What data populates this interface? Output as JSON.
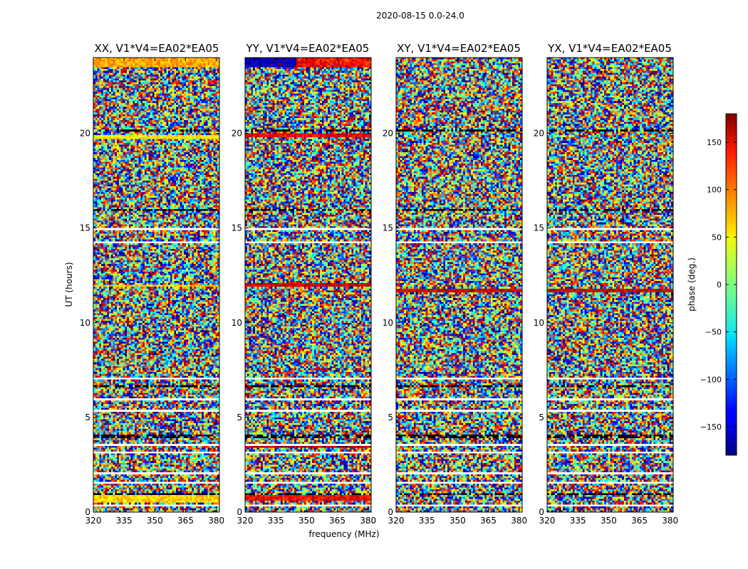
{
  "chart_data": {
    "type": "heatmap",
    "suptitle": "2020-08-15 0.0-24.0",
    "xlabel": "frequency (MHz)",
    "ylabel": "UT (hours)",
    "xlim": [
      320,
      381.5
    ],
    "ylim": [
      0,
      24
    ],
    "xticks": [
      320,
      335,
      350,
      365,
      380
    ],
    "yticks": [
      0,
      5,
      10,
      15,
      20
    ],
    "colorbar": {
      "label": "phase (deg.)",
      "range": [
        -180,
        180
      ],
      "ticks": [
        150,
        100,
        50,
        0,
        -50,
        -100,
        -150
      ],
      "tick_labels": [
        "150",
        "100",
        "50",
        "0",
        "−50",
        "−100",
        "−150"
      ],
      "colormap": "jet"
    },
    "grid_resolution": {
      "frequency_channels": 64,
      "time_samples": 240
    },
    "flagged_bands_white_hours": [
      [
        0.3,
        0.45
      ],
      [
        1.55,
        1.6
      ],
      [
        2.05,
        2.1
      ],
      [
        3.1,
        3.15
      ],
      [
        3.55,
        3.6
      ],
      [
        3.7,
        3.75
      ],
      [
        5.0,
        5.05
      ],
      [
        5.35,
        5.4
      ],
      [
        5.9,
        5.95
      ],
      [
        7.0,
        7.05
      ],
      [
        8.2,
        8.25
      ],
      [
        8.7,
        8.75
      ],
      [
        9.4,
        9.45
      ],
      [
        10.2,
        10.25
      ],
      [
        11.1,
        11.15
      ],
      [
        12.0,
        12.05
      ],
      [
        13.1,
        13.15
      ],
      [
        13.7,
        13.75
      ],
      [
        14.2,
        14.3
      ],
      [
        14.95,
        15.0
      ],
      [
        16.4,
        16.45
      ],
      [
        17.5,
        17.55
      ],
      [
        18.3,
        18.35
      ],
      [
        19.0,
        19.05
      ],
      [
        19.6,
        19.65
      ],
      [
        22.0,
        22.05
      ],
      [
        23.2,
        23.25
      ]
    ],
    "flagged_bands_black_hours": [
      [
        0.9,
        0.95
      ],
      [
        1.3,
        1.35
      ],
      [
        3.9,
        4.1
      ],
      [
        6.6,
        6.65
      ],
      [
        7.9,
        7.95
      ],
      [
        10.5,
        10.55
      ],
      [
        11.8,
        11.85
      ],
      [
        15.9,
        16.0
      ],
      [
        20.1,
        20.2
      ],
      [
        21.2,
        21.25
      ],
      [
        23.6,
        23.65
      ]
    ],
    "panels": [
      {
        "title": "XX, V1*V4=EA02*EA05",
        "coherent_bands": [
          {
            "t0": 0.5,
            "t1": 1.0,
            "phase": 60,
            "name": "orange-yellow band"
          },
          {
            "t0": 19.7,
            "t1": 19.9,
            "phase": 50,
            "name": "yellow band"
          },
          {
            "t0": 23.5,
            "t1": 24.0,
            "phase": 75,
            "name": "orange band"
          },
          {
            "t0": 11.9,
            "t1": 12.0,
            "phase": 60,
            "name": "yellow streak"
          }
        ]
      },
      {
        "title": "YY, V1*V4=EA02*EA05",
        "coherent_bands": [
          {
            "t0": 0.6,
            "t1": 1.0,
            "phase": 135,
            "name": "red band"
          },
          {
            "t0": 3.4,
            "t1": 3.6,
            "phase": 160,
            "name": "red streak"
          },
          {
            "t0": 11.9,
            "t1": 12.1,
            "phase": 150,
            "name": "red streak"
          },
          {
            "t0": 19.8,
            "t1": 20.0,
            "phase": 140,
            "name": "red band"
          },
          {
            "t0": 23.5,
            "t1": 24.0,
            "phase": -160,
            "name": "blue-red band"
          }
        ]
      },
      {
        "title": "XY, V1*V4=EA02*EA05",
        "coherent_bands": [
          {
            "t0": 11.6,
            "t1": 11.8,
            "phase": 150,
            "name": "red streak"
          }
        ]
      },
      {
        "title": "YX, V1*V4=EA02*EA05",
        "coherent_bands": [
          {
            "t0": 11.6,
            "t1": 11.8,
            "phase": 150,
            "name": "red streak"
          }
        ]
      }
    ]
  }
}
